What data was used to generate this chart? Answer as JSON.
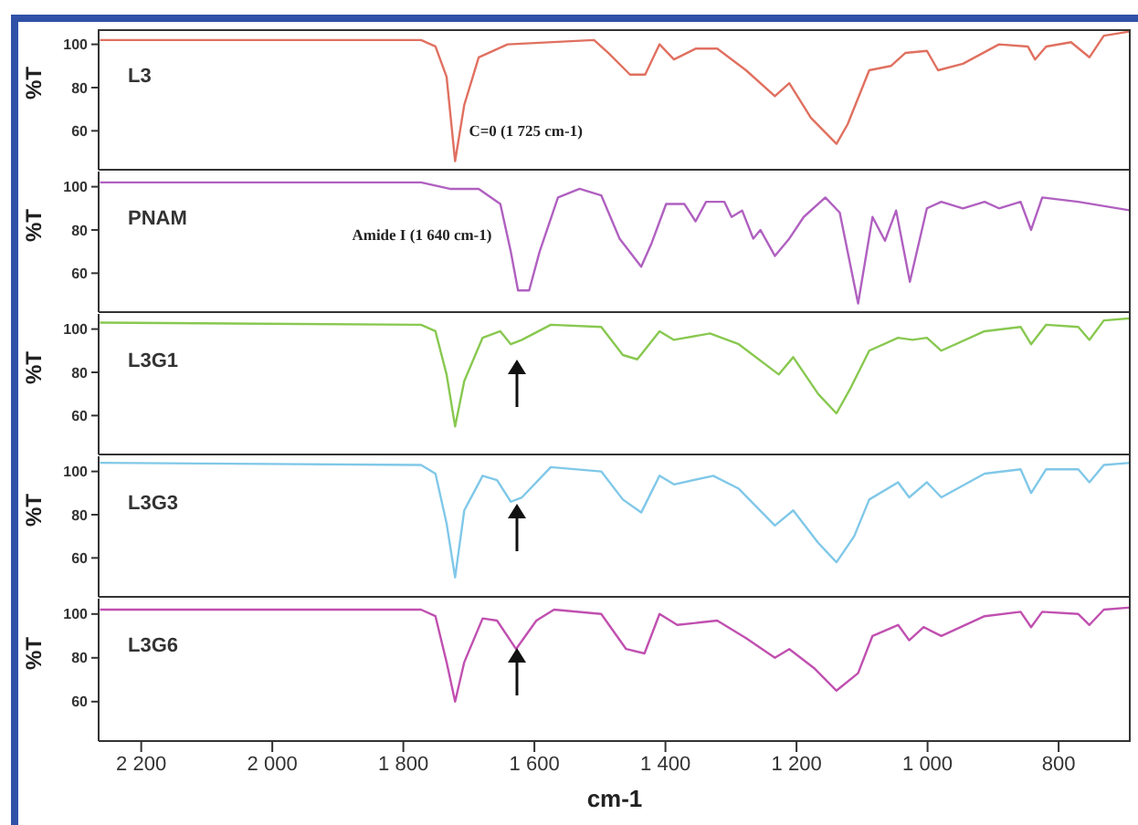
{
  "chart_data": [
    {
      "type": "line",
      "ylabel": "%T",
      "xlim": [
        2265,
        690
      ],
      "ylim": [
        42,
        107
      ],
      "yticks": [
        60,
        80,
        100
      ],
      "tick_labels": "y",
      "annotations": [
        {
          "text": "C=0 (1 725 cm-1)",
          "x": 1725,
          "y": 60
        }
      ],
      "x": [
        2263,
        1773,
        1751,
        1734,
        1721,
        1707,
        1685,
        1641,
        1509,
        1487,
        1454,
        1431,
        1409,
        1387,
        1354,
        1321,
        1277,
        1233,
        1211,
        1178,
        1139,
        1122,
        1089,
        1056,
        1034,
        1001,
        984,
        946,
        891,
        847,
        836,
        819,
        781,
        753,
        731,
        690
      ],
      "series": [
        {
          "name": "L3",
          "color": "#e07060",
          "values": [
            102,
            102,
            99,
            85,
            46,
            72,
            94,
            100,
            102,
            96,
            86,
            86,
            100,
            93,
            98,
            98,
            88,
            76,
            82,
            66,
            54,
            63,
            88,
            90,
            96,
            97,
            88,
            91,
            100,
            99,
            93,
            99,
            101,
            94,
            104,
            106
          ]
        }
      ]
    },
    {
      "type": "line",
      "ylabel": "%T",
      "xlim": [
        2265,
        690
      ],
      "ylim": [
        42,
        107
      ],
      "yticks": [
        60,
        80,
        100
      ],
      "tick_labels": "y",
      "annotations": [
        {
          "text": "Amide I (1 640 cm-1)",
          "x": 1640,
          "y": 78
        }
      ],
      "x": [
        2263,
        1773,
        1729,
        1685,
        1652,
        1636,
        1625,
        1608,
        1592,
        1564,
        1531,
        1498,
        1470,
        1437,
        1421,
        1399,
        1371,
        1354,
        1338,
        1310,
        1299,
        1283,
        1266,
        1255,
        1233,
        1211,
        1189,
        1156,
        1134,
        1106,
        1084,
        1065,
        1048,
        1027,
        1001,
        979,
        946,
        913,
        891,
        858,
        842,
        825,
        770,
        690
      ],
      "series": [
        {
          "name": "PNAM",
          "color": "#b060c0",
          "values": [
            102,
            102,
            99,
            99,
            92,
            70,
            52,
            52,
            70,
            95,
            99,
            96,
            76,
            63,
            74,
            92,
            92,
            84,
            93,
            93,
            86,
            89,
            76,
            80,
            68,
            76,
            86,
            95,
            88,
            46,
            86,
            75,
            89,
            56,
            90,
            93,
            90,
            93,
            90,
            93,
            80,
            95,
            93,
            89
          ]
        }
      ]
    },
    {
      "type": "line",
      "ylabel": "%T",
      "xlim": [
        2265,
        690
      ],
      "ylim": [
        42,
        107
      ],
      "yticks": [
        60,
        80,
        100
      ],
      "tick_labels": "y",
      "x": [
        2263,
        1773,
        1751,
        1734,
        1721,
        1707,
        1679,
        1652,
        1636,
        1619,
        1575,
        1498,
        1465,
        1443,
        1409,
        1387,
        1332,
        1288,
        1227,
        1205,
        1167,
        1139,
        1117,
        1089,
        1045,
        1023,
        1001,
        979,
        913,
        858,
        842,
        819,
        770,
        753,
        731,
        690
      ],
      "series": [
        {
          "name": "L3G1",
          "color": "#88c850",
          "values": [
            103,
            102,
            99,
            79,
            55,
            76,
            96,
            99,
            93,
            95,
            102,
            101,
            88,
            86,
            99,
            95,
            98,
            93,
            79,
            87,
            70,
            61,
            73,
            90,
            96,
            95,
            96,
            90,
            99,
            101,
            93,
            102,
            101,
            95,
            104,
            105
          ]
        }
      ]
    },
    {
      "type": "line",
      "ylabel": "%T",
      "xlim": [
        2265,
        690
      ],
      "ylim": [
        42,
        107
      ],
      "yticks": [
        60,
        80,
        100
      ],
      "tick_labels": "y",
      "x": [
        2263,
        1773,
        1751,
        1734,
        1721,
        1707,
        1679,
        1657,
        1636,
        1619,
        1575,
        1498,
        1465,
        1437,
        1409,
        1387,
        1327,
        1288,
        1233,
        1205,
        1167,
        1139,
        1112,
        1089,
        1045,
        1028,
        1001,
        979,
        913,
        858,
        842,
        819,
        770,
        753,
        731,
        690
      ],
      "series": [
        {
          "name": "L3G3",
          "color": "#80c8e8",
          "values": [
            104,
            103,
            99,
            76,
            51,
            82,
            98,
            96,
            86,
            88,
            102,
            100,
            87,
            81,
            98,
            94,
            98,
            92,
            75,
            82,
            67,
            58,
            70,
            87,
            95,
            88,
            95,
            88,
            99,
            101,
            90,
            101,
            101,
            95,
            103,
            104
          ]
        }
      ]
    },
    {
      "type": "line",
      "ylabel": "%T",
      "xlabel": "cm-1",
      "xlim": [
        2265,
        690
      ],
      "ylim": [
        42,
        107
      ],
      "yticks": [
        60,
        80,
        100
      ],
      "xticks": [
        {
          "value": 2200,
          "label": "2 200"
        },
        {
          "value": 2000,
          "label": "2 000"
        },
        {
          "value": 1800,
          "label": "1 800"
        },
        {
          "value": 1600,
          "label": "1 600"
        },
        {
          "value": 1400,
          "label": "1 400"
        },
        {
          "value": 1200,
          "label": "1 200"
        },
        {
          "value": 1000,
          "label": "1 000"
        },
        800
      ],
      "x": [
        2263,
        1773,
        1751,
        1734,
        1721,
        1707,
        1679,
        1657,
        1628,
        1597,
        1570,
        1498,
        1460,
        1432,
        1409,
        1382,
        1321,
        1277,
        1233,
        1211,
        1172,
        1139,
        1106,
        1084,
        1045,
        1028,
        1006,
        979,
        913,
        858,
        842,
        825,
        770,
        753,
        731,
        690
      ],
      "series": [
        {
          "name": "L3G6",
          "color": "#c050b0",
          "values": [
            102,
            102,
            99,
            78,
            60,
            78,
            98,
            97,
            84,
            97,
            102,
            100,
            84,
            82,
            100,
            95,
            97,
            89,
            80,
            84,
            75,
            65,
            73,
            90,
            95,
            88,
            94,
            90,
            99,
            101,
            94,
            101,
            100,
            95,
            102,
            103
          ]
        }
      ]
    }
  ]
}
